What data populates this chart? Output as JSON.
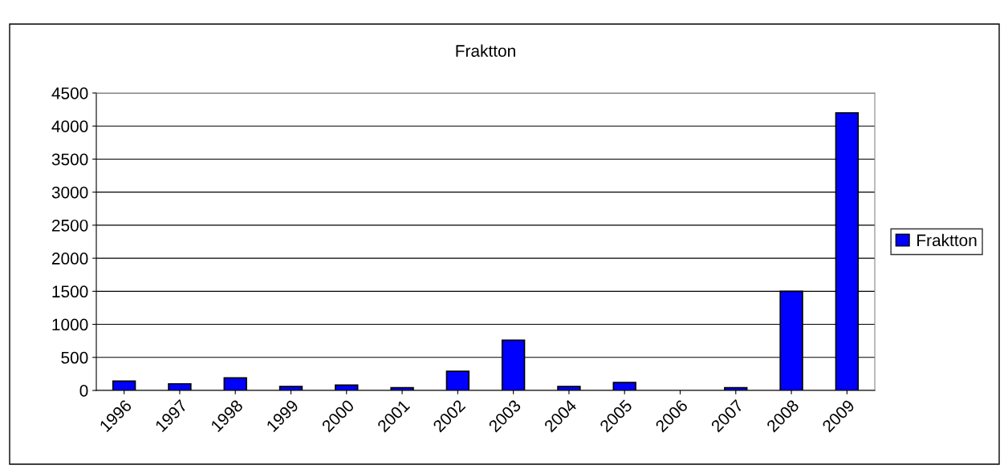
{
  "chart_data": {
    "type": "bar",
    "title": "Fraktton",
    "categories": [
      "1996",
      "1997",
      "1998",
      "1999",
      "2000",
      "2001",
      "2002",
      "2003",
      "2004",
      "2005",
      "2006",
      "2007",
      "2008",
      "2009"
    ],
    "series": [
      {
        "name": "Fraktton",
        "color": "#0000ff",
        "values": [
          140,
          100,
          190,
          60,
          80,
          40,
          290,
          760,
          60,
          120,
          0,
          40,
          1500,
          4200
        ]
      }
    ],
    "ylim": [
      0,
      4500
    ],
    "yticks": [
      0,
      500,
      1000,
      1500,
      2000,
      2500,
      3000,
      3500,
      4000,
      4500
    ],
    "grid": "y",
    "legend": "right"
  }
}
